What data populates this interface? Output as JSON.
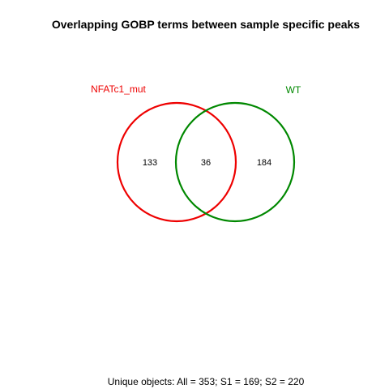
{
  "title": "Overlapping GOBP terms between sample specific peaks",
  "sets": [
    {
      "name": "NFATc1_mut",
      "color": "#ee0000"
    },
    {
      "name": "WT",
      "color": "#008800"
    }
  ],
  "counts": {
    "only_nfatc1_mut": "133",
    "intersection": "36",
    "only_wt": "184"
  },
  "footer": "Unique objects: All = 353; S1 = 169; S2 = 220"
}
